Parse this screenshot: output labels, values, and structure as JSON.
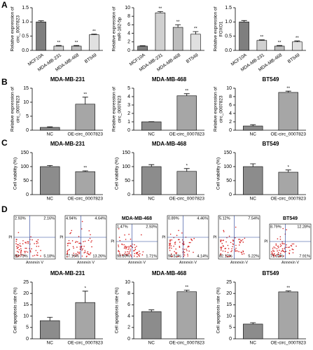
{
  "panel_labels": [
    "A",
    "B",
    "C",
    "D"
  ],
  "chart_data": [
    {
      "type": "bar",
      "ylabel": [
        "Relative expression of",
        "circ_0007823"
      ],
      "categories": [
        "MCF10A",
        "MDA-MB-231",
        "MDA-MB-468",
        "BT549"
      ],
      "values": [
        1.0,
        0.15,
        0.15,
        0.55
      ],
      "errors": [
        0.04,
        0.02,
        0.02,
        0.02
      ],
      "annotations": [
        null,
        "**",
        "**",
        "**"
      ],
      "colors": [
        "#7f7f7f",
        "#d0d0d0",
        "#bdbdbd",
        "#e0e0e0"
      ],
      "ylim": [
        0,
        1.5
      ],
      "yticks": [
        {
          "value": 0,
          "label": "0.0"
        },
        {
          "value": 0.5,
          "label": "0.5"
        },
        {
          "value": 1,
          "label": "1.0"
        },
        {
          "value": 1.5,
          "label": "1.5"
        }
      ],
      "rotate_labels": true
    },
    {
      "type": "bar",
      "ylabel": [
        "Relative expression of",
        "miR-182-5p"
      ],
      "categories": [
        "MCF10A",
        "MDA-MB-231",
        "MDA-MB-468",
        "BT549"
      ],
      "values": [
        1.0,
        8.8,
        5.4,
        3.8
      ],
      "errors": [
        0.1,
        0.3,
        0.6,
        0.6
      ],
      "annotations": [
        null,
        "**",
        "**",
        "**"
      ],
      "colors": [
        "#7f7f7f",
        "#d0d0d0",
        "#bdbdbd",
        "#e0e0e0"
      ],
      "ylim": [
        0,
        10
      ],
      "yticks": [
        0,
        2,
        4,
        6,
        8,
        10
      ],
      "rotate_labels": true
    },
    {
      "type": "bar",
      "ylabel": [
        "Relative expression of",
        "FOXO1"
      ],
      "categories": [
        "MCF10A",
        "MDA-MB-231",
        "MDA-MB-468",
        "BT549"
      ],
      "values": [
        1.0,
        0.35,
        0.15,
        0.3
      ],
      "errors": [
        0.05,
        0.02,
        0.02,
        0.03
      ],
      "annotations": [
        null,
        "**",
        "**",
        "**"
      ],
      "colors": [
        "#7f7f7f",
        "#d0d0d0",
        "#bdbdbd",
        "#e0e0e0"
      ],
      "ylim": [
        0,
        1.5
      ],
      "yticks": [
        {
          "value": 0,
          "label": "0.0"
        },
        {
          "value": 0.5,
          "label": "0.5"
        },
        {
          "value": 1,
          "label": "1.0"
        },
        {
          "value": 1.5,
          "label": "1.5"
        }
      ],
      "rotate_labels": true
    },
    {
      "type": "bar",
      "title": "MDA-MB-231",
      "ylabel": [
        "Relative expression of",
        "circ_0007823"
      ],
      "categories": [
        "NC",
        "OE-circ_0007823"
      ],
      "values": [
        1,
        9.3
      ],
      "errors": [
        0.2,
        2.5
      ],
      "annotations": [
        null,
        "**"
      ],
      "colors": [
        "#8c8c8c",
        "#a6a6a6"
      ],
      "ylim": [
        0,
        15
      ],
      "yticks": [
        0,
        5,
        10,
        15
      ]
    },
    {
      "type": "bar",
      "title": "MDA-MB-468",
      "ylabel": [
        "Relative expression of",
        "circ_0007823"
      ],
      "categories": [
        "NC",
        "OE-circ_0007823"
      ],
      "values": [
        1,
        4.1
      ],
      "errors": [
        0.02,
        0.25
      ],
      "annotations": [
        null,
        "**"
      ],
      "colors": [
        "#8c8c8c",
        "#a6a6a6"
      ],
      "ylim": [
        0,
        5
      ],
      "yticks": [
        0,
        1,
        2,
        3,
        4,
        5
      ]
    },
    {
      "type": "bar",
      "title": "BT549",
      "ylabel": [
        "Relative expression of",
        "circ_0007823"
      ],
      "categories": [
        "NC",
        "OE-circ_0007823"
      ],
      "values": [
        1,
        9
      ],
      "errors": [
        0.3,
        0.3
      ],
      "annotations": [
        null,
        "**"
      ],
      "colors": [
        "#8c8c8c",
        "#a6a6a6"
      ],
      "ylim": [
        0,
        10
      ],
      "yticks": [
        0,
        2,
        4,
        6,
        8,
        10
      ]
    },
    {
      "type": "bar",
      "title": "MDA-MB-231",
      "ylabel": [
        "Cell viability (%)"
      ],
      "categories": [
        "NC",
        "OE-circ_0007823"
      ],
      "values": [
        100,
        82
      ],
      "errors": [
        4,
        3
      ],
      "annotations": [
        null,
        "**"
      ],
      "colors": [
        "#8c8c8c",
        "#a6a6a6"
      ],
      "ylim": [
        0,
        150
      ],
      "yticks": [
        0,
        50,
        100,
        150
      ]
    },
    {
      "type": "bar",
      "title": "MDA-MB-468",
      "ylabel": [
        "Cell viability (%)"
      ],
      "categories": [
        "NC",
        "OE-circ_0007823"
      ],
      "values": [
        100,
        83
      ],
      "errors": [
        7,
        10
      ],
      "annotations": [
        null,
        "*"
      ],
      "colors": [
        "#8c8c8c",
        "#a6a6a6"
      ],
      "ylim": [
        0,
        150
      ],
      "yticks": [
        0,
        50,
        100,
        150
      ]
    },
    {
      "type": "bar",
      "title": "BT549",
      "ylabel": [
        "Cell viability (%)"
      ],
      "categories": [
        "NC",
        "OE-circ_0007823"
      ],
      "values": [
        100,
        80
      ],
      "errors": [
        10,
        8
      ],
      "annotations": [
        null,
        "*"
      ],
      "colors": [
        "#8c8c8c",
        "#a6a6a6"
      ],
      "ylim": [
        0,
        150
      ],
      "yticks": [
        0,
        50,
        100,
        150
      ]
    },
    {
      "type": "flow",
      "ylabel": "PI",
      "xlabel": "Annexin V",
      "quadrants": [
        "2.93%",
        "2.16%",
        "89.73%",
        "5.18%"
      ]
    },
    {
      "type": "flow",
      "ylabel": "PI",
      "xlabel": "Annexin V",
      "quadrants": [
        "4.94%",
        "4.64%",
        "77.16%",
        "13.26%"
      ]
    },
    {
      "type": "flow",
      "title": "MDA-MB-468",
      "ylabel": "PI",
      "xlabel": "Annexin V",
      "quadrants": [
        "1.47%",
        "2.93%",
        "93.89%",
        "1.71%"
      ]
    },
    {
      "type": "flow",
      "ylabel": "PI",
      "xlabel": "Annexin V",
      "quadrants": [
        "0.89%",
        "4.46%",
        "90.52%",
        "4.14%"
      ]
    },
    {
      "type": "flow",
      "ylabel": "PI",
      "xlabel": "Annexin V",
      "quadrants": [
        "5.12%",
        "7.54%",
        "82.12%",
        "5.22%"
      ]
    },
    {
      "type": "flow",
      "title": "BT549",
      "ylabel": "PI",
      "xlabel": "Annexin V",
      "quadrants": [
        "8.79%",
        "12.28%",
        "71.02%",
        "7.91%"
      ]
    },
    {
      "type": "bar",
      "title": "MDA-MB-231",
      "ylabel": [
        "Cell apoptosis rate (%)"
      ],
      "categories": [
        "NC",
        "OE-circ_0007823"
      ],
      "values": [
        8,
        16
      ],
      "errors": [
        1.5,
        5
      ],
      "annotations": [
        null,
        "*"
      ],
      "colors": [
        "#8c8c8c",
        "#a6a6a6"
      ],
      "ylim": [
        0,
        25
      ],
      "yticks": [
        0,
        5,
        10,
        15,
        20,
        25
      ]
    },
    {
      "type": "bar",
      "title": "MDA-MB-468",
      "ylabel": [
        "Cell apoptosis rate (%)"
      ],
      "categories": [
        "NC",
        "OE-circ_0007823"
      ],
      "values": [
        4.8,
        8.3
      ],
      "errors": [
        0.3,
        0.3
      ],
      "annotations": [
        null,
        "**"
      ],
      "colors": [
        "#8c8c8c",
        "#a6a6a6"
      ],
      "ylim": [
        0,
        10
      ],
      "yticks": [
        0,
        2,
        4,
        6,
        8,
        10
      ]
    },
    {
      "type": "bar",
      "title": "BT549",
      "ylabel": [
        "Cell apoptosis rate (%)"
      ],
      "categories": [
        "NC",
        "OE-circ_0007823"
      ],
      "values": [
        6.5,
        20.7
      ],
      "errors": [
        0.6,
        0.4
      ],
      "annotations": [
        null,
        "**"
      ],
      "colors": [
        "#8c8c8c",
        "#a6a6a6"
      ],
      "ylim": [
        0,
        25
      ],
      "yticks": [
        0,
        5,
        10,
        15,
        20,
        25
      ]
    }
  ]
}
